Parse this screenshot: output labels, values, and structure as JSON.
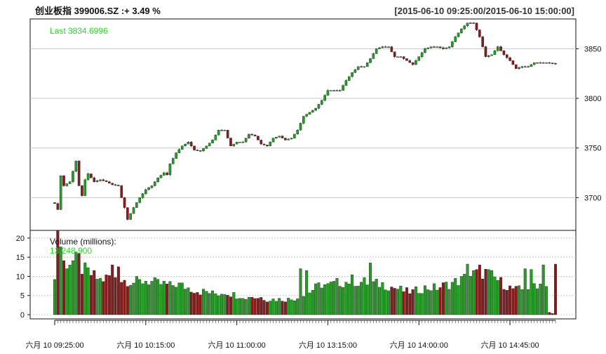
{
  "header": {
    "title": "创业板指 399006.SZ :+ 3.49 %",
    "range": "[2015-06-10 09:25:00/2015-06-10 15:00:00]"
  },
  "price_panel": {
    "last_label": "Last 3834.6996"
  },
  "volume_panel": {
    "label": "Volume (millions):",
    "last_value": "13,248,900"
  },
  "colors": {
    "up": "#22a022",
    "down": "#8b1a1a",
    "grid": "#c8c8c8",
    "legend": "#22dd22"
  },
  "chart_data": [
    {
      "type": "candlestick",
      "ylim": [
        3667,
        3880
      ],
      "yticks": [
        3700,
        3750,
        3800,
        3850
      ],
      "xtick_labels": [
        "六月 10 09:25:00",
        "六月 10 10:15:00",
        "六月 10 11:00:00",
        "六月 10 13:15:00",
        "六月 10 14:00:00",
        "六月 10 14:45:00"
      ],
      "xtick_index": [
        0,
        30,
        60,
        90,
        120,
        150
      ],
      "n_points": 166,
      "anchors": [
        [
          0,
          3694
        ],
        [
          1,
          3688
        ],
        [
          2,
          3722
        ],
        [
          3,
          3712
        ],
        [
          5,
          3716
        ],
        [
          7,
          3737
        ],
        [
          8,
          3712
        ],
        [
          9,
          3702
        ],
        [
          10,
          3718
        ],
        [
          11,
          3724
        ],
        [
          13,
          3716
        ],
        [
          15,
          3718
        ],
        [
          17,
          3716
        ],
        [
          19,
          3713
        ],
        [
          21,
          3712
        ],
        [
          22,
          3700
        ],
        [
          23,
          3690
        ],
        [
          24,
          3678
        ],
        [
          26,
          3690
        ],
        [
          28,
          3700
        ],
        [
          30,
          3708
        ],
        [
          32,
          3712
        ],
        [
          34,
          3720
        ],
        [
          36,
          3725
        ],
        [
          37,
          3723
        ],
        [
          38,
          3734
        ],
        [
          40,
          3745
        ],
        [
          42,
          3752
        ],
        [
          44,
          3756
        ],
        [
          46,
          3748
        ],
        [
          48,
          3747
        ],
        [
          50,
          3752
        ],
        [
          52,
          3758
        ],
        [
          54,
          3768
        ],
        [
          56,
          3768
        ],
        [
          58,
          3752
        ],
        [
          60,
          3756
        ],
        [
          62,
          3756
        ],
        [
          64,
          3764
        ],
        [
          66,
          3762
        ],
        [
          68,
          3754
        ],
        [
          70,
          3752
        ],
        [
          72,
          3760
        ],
        [
          74,
          3762
        ],
        [
          76,
          3758
        ],
        [
          78,
          3760
        ],
        [
          80,
          3768
        ],
        [
          82,
          3782
        ],
        [
          84,
          3786
        ],
        [
          86,
          3790
        ],
        [
          88,
          3798
        ],
        [
          90,
          3808
        ],
        [
          92,
          3808
        ],
        [
          94,
          3808
        ],
        [
          96,
          3818
        ],
        [
          98,
          3826
        ],
        [
          100,
          3832
        ],
        [
          102,
          3832
        ],
        [
          104,
          3840
        ],
        [
          106,
          3850
        ],
        [
          108,
          3852
        ],
        [
          110,
          3852
        ],
        [
          112,
          3842
        ],
        [
          114,
          3842
        ],
        [
          116,
          3838
        ],
        [
          118,
          3834
        ],
        [
          120,
          3842
        ],
        [
          122,
          3850
        ],
        [
          124,
          3852
        ],
        [
          126,
          3852
        ],
        [
          128,
          3850
        ],
        [
          130,
          3852
        ],
        [
          132,
          3862
        ],
        [
          134,
          3870
        ],
        [
          136,
          3876
        ],
        [
          138,
          3876
        ],
        [
          140,
          3862
        ],
        [
          142,
          3842
        ],
        [
          144,
          3844
        ],
        [
          146,
          3852
        ],
        [
          148,
          3844
        ],
        [
          150,
          3838
        ],
        [
          152,
          3830
        ],
        [
          154,
          3832
        ],
        [
          156,
          3832
        ],
        [
          158,
          3836
        ],
        [
          160,
          3836
        ],
        [
          162,
          3836
        ],
        [
          165,
          3835
        ]
      ]
    },
    {
      "type": "bar",
      "ylim": [
        0,
        22
      ],
      "yticks": [
        0,
        5,
        10,
        15,
        20
      ],
      "anchors": [
        [
          0,
          9
        ],
        [
          1,
          21
        ],
        [
          2,
          18
        ],
        [
          3,
          13.5
        ],
        [
          5,
          13.8
        ],
        [
          7,
          14
        ],
        [
          9,
          12
        ],
        [
          11,
          11
        ],
        [
          13,
          10
        ],
        [
          15,
          9
        ],
        [
          17,
          9.5
        ],
        [
          18,
          10
        ],
        [
          19,
          12
        ],
        [
          20,
          10
        ],
        [
          22,
          9
        ],
        [
          24,
          9
        ],
        [
          26,
          8.5
        ],
        [
          28,
          8.5
        ],
        [
          30,
          9
        ],
        [
          32,
          8.5
        ],
        [
          34,
          8
        ],
        [
          36,
          8
        ],
        [
          38,
          7.5
        ],
        [
          40,
          8
        ],
        [
          42,
          7.5
        ],
        [
          44,
          7
        ],
        [
          46,
          6.5
        ],
        [
          48,
          6
        ],
        [
          50,
          6
        ],
        [
          52,
          5.5
        ],
        [
          54,
          5.5
        ],
        [
          56,
          6
        ],
        [
          58,
          5.5
        ],
        [
          60,
          5
        ],
        [
          62,
          5
        ],
        [
          64,
          5
        ],
        [
          66,
          4.5
        ],
        [
          68,
          4.5
        ],
        [
          70,
          4
        ],
        [
          72,
          4
        ],
        [
          74,
          4
        ],
        [
          76,
          4
        ],
        [
          78,
          4
        ],
        [
          80,
          4.5
        ],
        [
          82,
          5
        ],
        [
          84,
          6
        ],
        [
          86,
          7
        ],
        [
          88,
          8
        ],
        [
          90,
          7.5
        ],
        [
          92,
          8
        ],
        [
          94,
          8.5
        ],
        [
          96,
          8.5
        ],
        [
          98,
          9
        ],
        [
          100,
          8.5
        ],
        [
          102,
          8.5
        ],
        [
          104,
          8
        ],
        [
          106,
          8
        ],
        [
          108,
          8
        ],
        [
          110,
          7.5
        ],
        [
          112,
          7
        ],
        [
          114,
          6.5
        ],
        [
          116,
          6
        ],
        [
          118,
          6
        ],
        [
          120,
          6.5
        ],
        [
          122,
          7
        ],
        [
          124,
          7
        ],
        [
          126,
          7
        ],
        [
          128,
          7.5
        ],
        [
          130,
          8
        ],
        [
          132,
          8.5
        ],
        [
          134,
          9
        ],
        [
          136,
          10
        ],
        [
          138,
          10.5
        ],
        [
          140,
          11
        ],
        [
          142,
          11
        ],
        [
          144,
          10
        ],
        [
          146,
          9
        ],
        [
          148,
          8
        ],
        [
          150,
          7
        ],
        [
          152,
          6.5
        ],
        [
          154,
          6.5
        ],
        [
          156,
          7
        ],
        [
          158,
          8
        ],
        [
          160,
          8
        ],
        [
          162,
          7.5
        ],
        [
          163,
          0.6
        ],
        [
          164,
          0.3
        ],
        [
          165,
          13.2
        ]
      ],
      "spikes": [
        [
          1,
          22
        ],
        [
          8,
          16
        ],
        [
          19,
          13
        ],
        [
          21,
          12.5
        ],
        [
          63,
          4
        ],
        [
          81,
          12
        ],
        [
          83,
          11.5
        ],
        [
          104,
          13.5
        ],
        [
          136,
          13.2
        ],
        [
          140,
          13
        ],
        [
          155,
          12
        ],
        [
          157,
          11.8
        ],
        [
          161,
          13
        ]
      ]
    }
  ]
}
